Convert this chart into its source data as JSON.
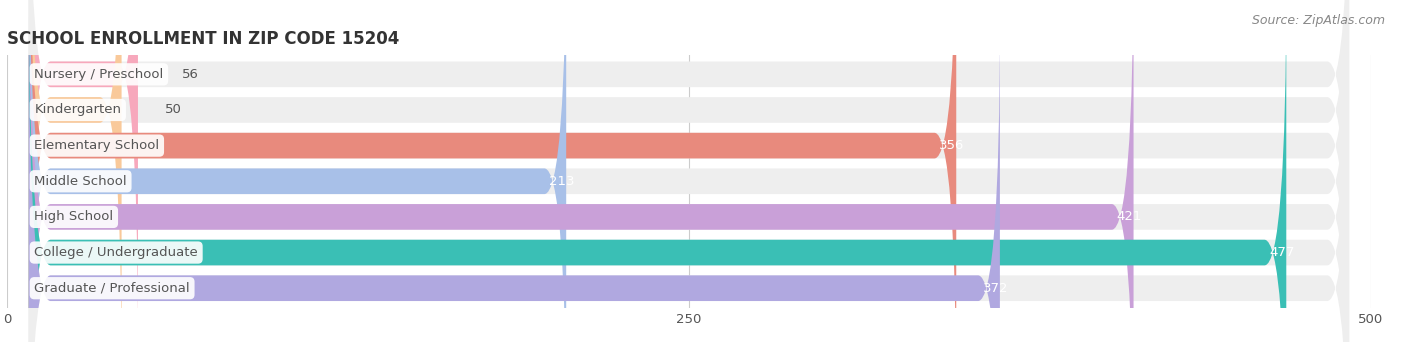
{
  "title": "SCHOOL ENROLLMENT IN ZIP CODE 15204",
  "source": "Source: ZipAtlas.com",
  "categories": [
    "Nursery / Preschool",
    "Kindergarten",
    "Elementary School",
    "Middle School",
    "High School",
    "College / Undergraduate",
    "Graduate / Professional"
  ],
  "values": [
    56,
    50,
    356,
    213,
    421,
    477,
    372
  ],
  "bar_colors": [
    "#f7a8bc",
    "#f9c99a",
    "#e88a7d",
    "#a8c0e8",
    "#c9a0d8",
    "#3abfb5",
    "#b0a8e0"
  ],
  "bar_bg_color": "#eeeeee",
  "xlim": [
    0,
    500
  ],
  "xticks": [
    0,
    250,
    500
  ],
  "title_fontsize": 12,
  "label_fontsize": 9.5,
  "value_fontsize": 9.5,
  "source_fontsize": 9,
  "bar_height": 0.72,
  "bg_color": "#ffffff",
  "text_color": "#555555",
  "title_color": "#333333",
  "source_color": "#888888",
  "grid_color": "#cccccc"
}
